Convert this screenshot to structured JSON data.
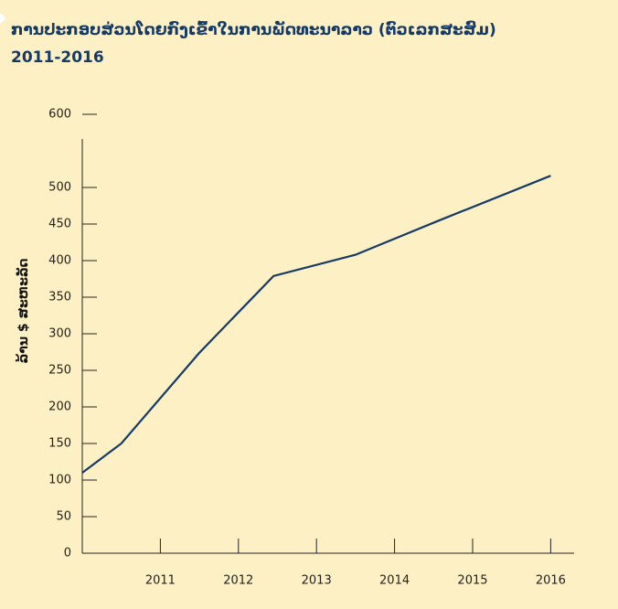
{
  "chart_data": {
    "type": "line",
    "title": "ການປະກອບສ່ວນໂດຍກົງເຂົ້າໃນການພັດທະນາລາວ (ຕົວເລກສະສົມ)",
    "subtitle": "2011-2016",
    "y_label": "ລ້ານ $ ສະຫະລັດ",
    "x": [
      2010,
      2010.5,
      2011.5,
      2012.45,
      2013.5,
      2014.55,
      2016
    ],
    "series": [
      {
        "color": "#163a66",
        "values": [
          110,
          150,
          274,
          379,
          408,
          454,
          516
        ]
      }
    ],
    "xlim": [
      2010,
      2016.3
    ],
    "xticks": [
      2011,
      2012,
      2013,
      2014,
      2015,
      2016
    ],
    "ylim": [
      0,
      600
    ],
    "yticks": [
      0,
      50,
      100,
      150,
      200,
      250,
      300,
      350,
      400,
      450,
      500,
      600
    ]
  }
}
